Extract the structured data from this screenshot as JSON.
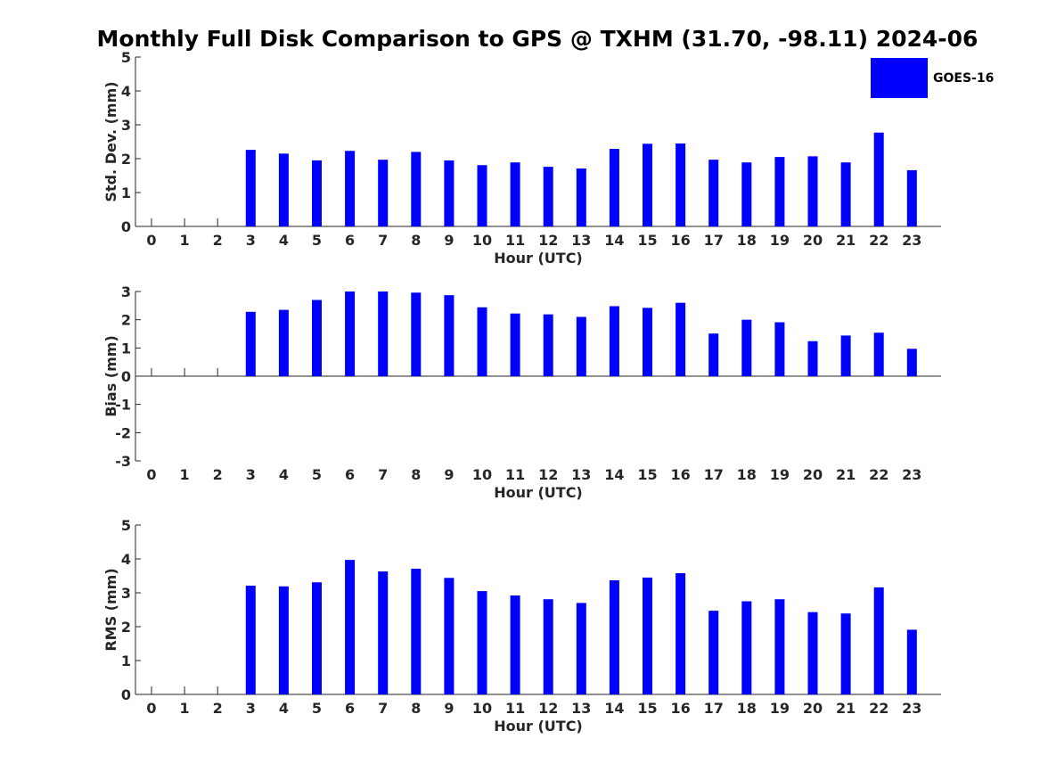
{
  "title": "Monthly Full Disk Comparison to GPS @ TXHM (31.70, -98.11) 2024-06",
  "legend": {
    "label": "GOES-16",
    "color": "#0000ff",
    "position": "top-right"
  },
  "chart_data": [
    {
      "type": "bar",
      "ylabel": "Std. Dev. (mm)",
      "xlabel": "Hour (UTC)",
      "ylim": [
        0,
        5
      ],
      "yticks": [
        "0",
        "1",
        "2",
        "3",
        "4",
        "5"
      ],
      "categories": [
        "0",
        "1",
        "2",
        "3",
        "4",
        "5",
        "6",
        "7",
        "8",
        "9",
        "10",
        "11",
        "12",
        "13",
        "14",
        "15",
        "16",
        "17",
        "18",
        "19",
        "20",
        "21",
        "22",
        "23"
      ],
      "series": [
        {
          "name": "GOES-16",
          "values": [
            null,
            null,
            null,
            2.26,
            2.15,
            1.95,
            2.23,
            1.97,
            2.2,
            1.95,
            1.81,
            1.89,
            1.76,
            1.71,
            2.29,
            2.44,
            2.45,
            1.97,
            1.89,
            2.05,
            2.07,
            1.89,
            2.77,
            1.66
          ]
        }
      ],
      "grid": false
    },
    {
      "type": "bar",
      "ylabel": "Bias (mm)",
      "xlabel": "Hour (UTC)",
      "ylim": [
        -3,
        3
      ],
      "yticks": [
        "-3",
        "-2",
        "-1",
        "0",
        "1",
        "2",
        "3"
      ],
      "categories": [
        "0",
        "1",
        "2",
        "3",
        "4",
        "5",
        "6",
        "7",
        "8",
        "9",
        "10",
        "11",
        "12",
        "13",
        "14",
        "15",
        "16",
        "17",
        "18",
        "19",
        "20",
        "21",
        "22",
        "23"
      ],
      "series": [
        {
          "name": "GOES-16",
          "values": [
            null,
            null,
            null,
            2.28,
            2.35,
            2.7,
            3.0,
            3.0,
            2.96,
            2.87,
            2.44,
            2.22,
            2.19,
            2.1,
            2.48,
            2.42,
            2.6,
            1.51,
            2.0,
            1.91,
            1.24,
            1.44,
            1.54,
            0.97
          ]
        }
      ],
      "grid": false
    },
    {
      "type": "bar",
      "ylabel": "RMS (mm)",
      "xlabel": "Hour (UTC)",
      "ylim": [
        0,
        5
      ],
      "yticks": [
        "0",
        "1",
        "2",
        "3",
        "4",
        "5"
      ],
      "categories": [
        "0",
        "1",
        "2",
        "3",
        "4",
        "5",
        "6",
        "7",
        "8",
        "9",
        "10",
        "11",
        "12",
        "13",
        "14",
        "15",
        "16",
        "17",
        "18",
        "19",
        "20",
        "21",
        "22",
        "23"
      ],
      "series": [
        {
          "name": "GOES-16",
          "values": [
            null,
            null,
            null,
            3.21,
            3.19,
            3.31,
            3.97,
            3.63,
            3.71,
            3.44,
            3.05,
            2.92,
            2.81,
            2.7,
            3.37,
            3.45,
            3.58,
            2.47,
            2.75,
            2.81,
            2.43,
            2.39,
            3.16,
            1.91
          ]
        }
      ],
      "grid": false
    }
  ]
}
